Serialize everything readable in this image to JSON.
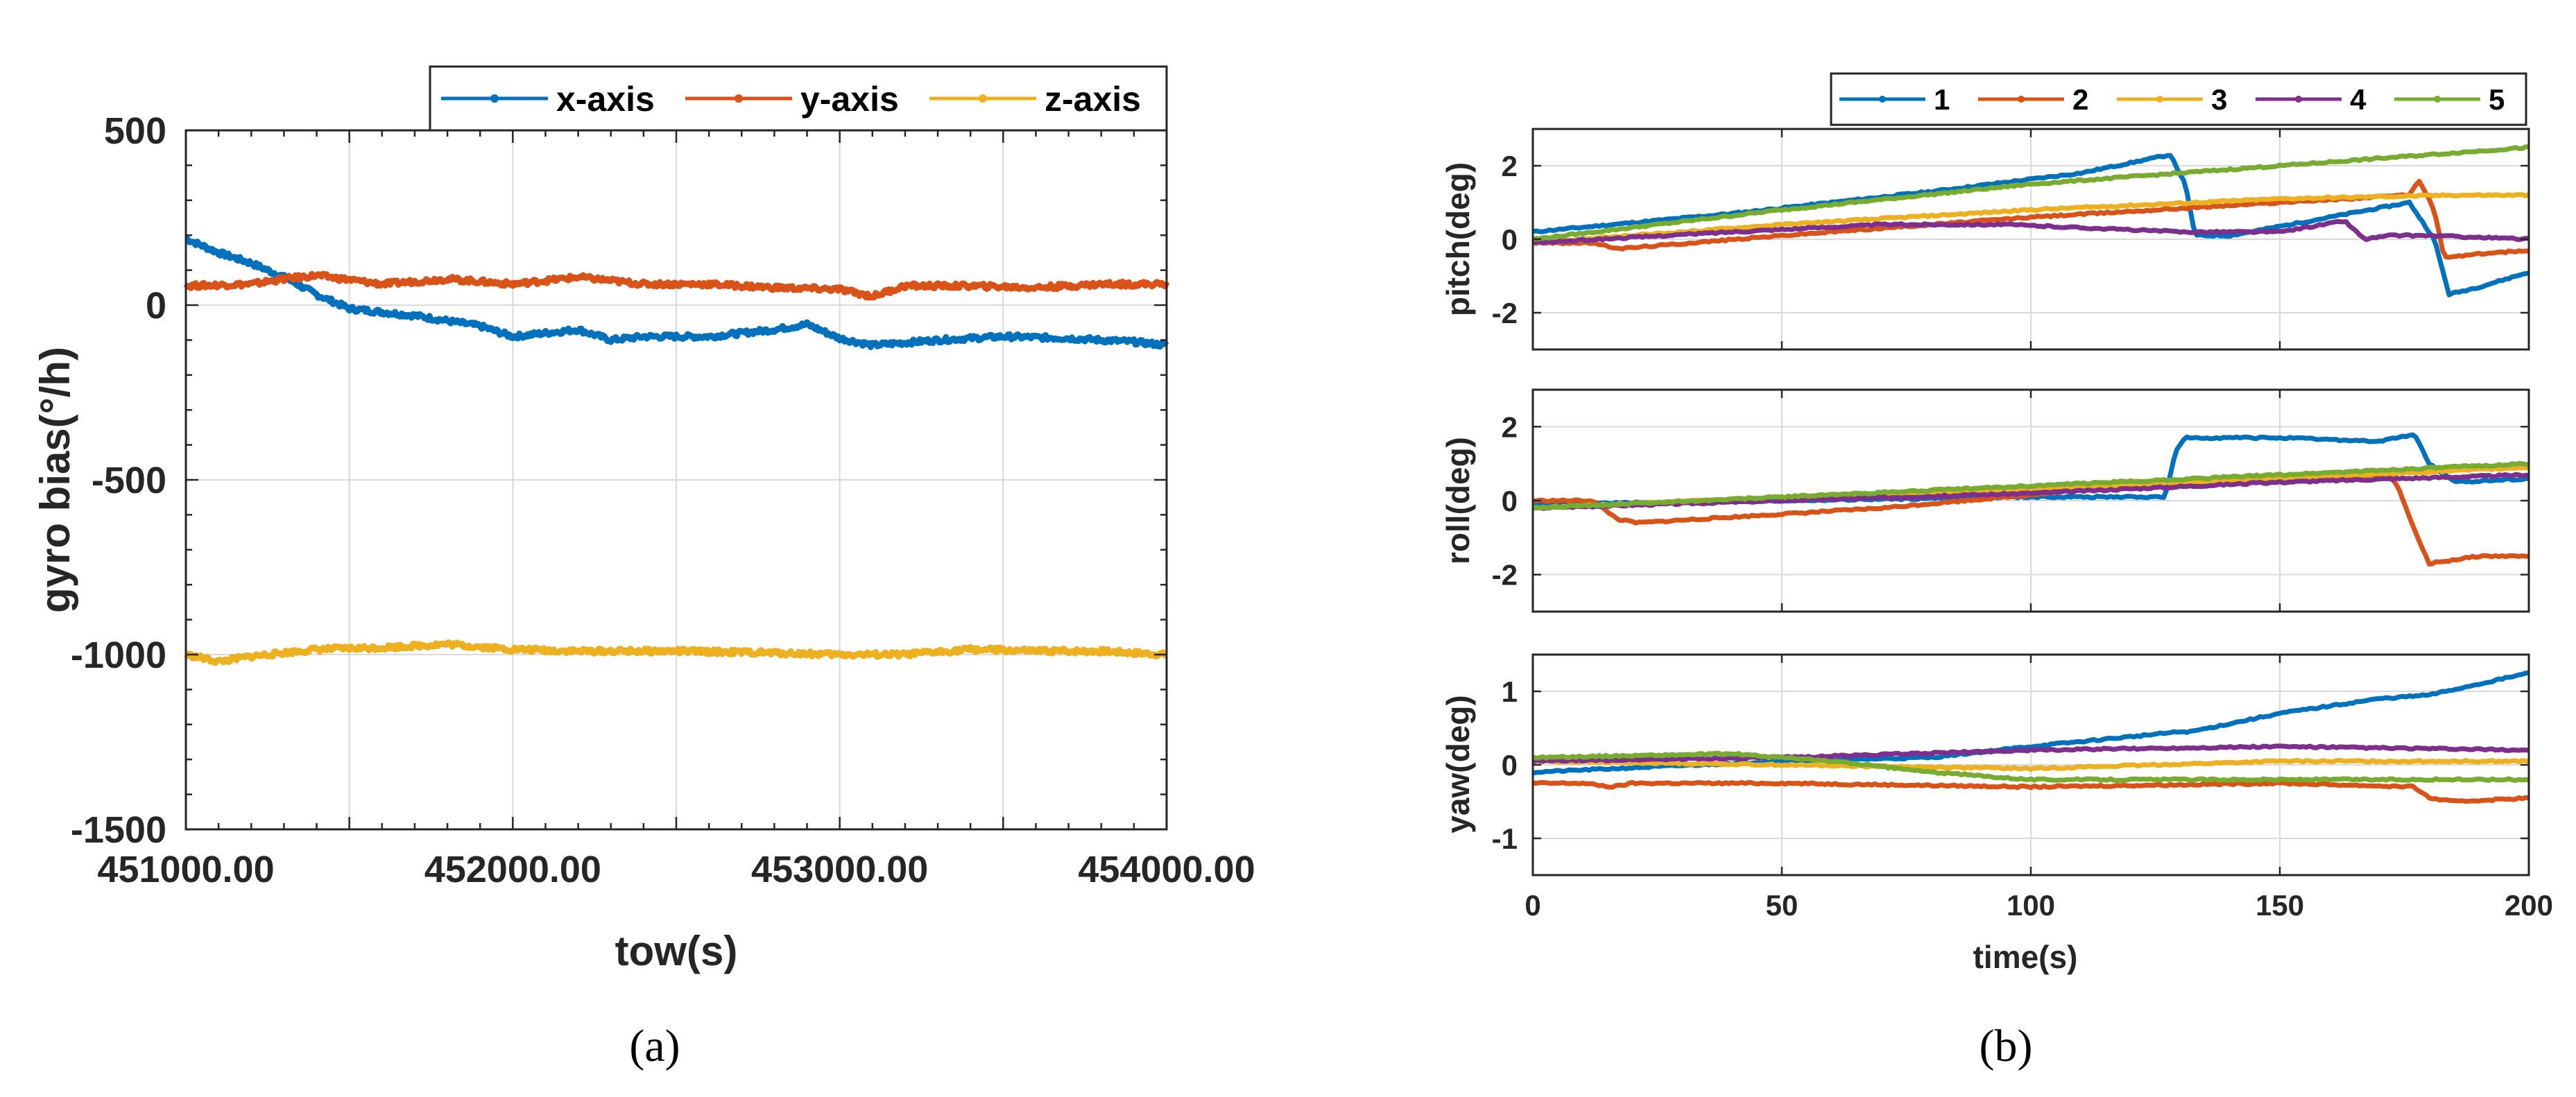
{
  "chart_data": [
    {
      "type": "line",
      "panel": "a",
      "caption": "(a)",
      "xlabel": "tow(s)",
      "ylabel": "gyro bias(°/h)",
      "xlim": [
        451000,
        454000
      ],
      "ylim": [
        -1500,
        500
      ],
      "xticks": [
        451000,
        452000,
        453000,
        454000
      ],
      "xtick_labels": [
        "451000.00",
        "452000.00",
        "453000.00",
        "454000.00"
      ],
      "yticks": [
        500,
        0,
        -500,
        -1000,
        -1500
      ],
      "ytick_labels": [
        "500",
        "0",
        "-500",
        "-1000",
        "-1500"
      ],
      "grid": true,
      "legend_position": "top-right",
      "series": [
        {
          "name": "x-axis",
          "color": "#0072BD",
          "x": [
            451000,
            451100,
            451200,
            451300,
            451400,
            451500,
            451700,
            451900,
            452000,
            452200,
            452300,
            452400,
            452600,
            452800,
            452900,
            453000,
            453100,
            453300,
            453500,
            453700,
            453900,
            454000
          ],
          "y": [
            190,
            150,
            120,
            80,
            30,
            -10,
            -30,
            -60,
            -90,
            -70,
            -100,
            -90,
            -90,
            -70,
            -55,
            -95,
            -115,
            -100,
            -90,
            -95,
            -105,
            -115
          ]
        },
        {
          "name": "y-axis",
          "color": "#D95319",
          "x": [
            451000,
            451200,
            451300,
            451400,
            451600,
            451800,
            452000,
            452200,
            452400,
            452600,
            452800,
            453000,
            453100,
            453200,
            453400,
            453600,
            453800,
            454000
          ],
          "y": [
            55,
            60,
            75,
            85,
            60,
            75,
            60,
            80,
            60,
            60,
            50,
            45,
            25,
            55,
            55,
            50,
            60,
            60
          ]
        },
        {
          "name": "z-axis",
          "color": "#EDB120",
          "x": [
            451000,
            451100,
            451200,
            451400,
            451600,
            451800,
            452000,
            452200,
            452500,
            452800,
            453000,
            453200,
            453400,
            453600,
            453800,
            454000
          ],
          "y": [
            -1000,
            -1020,
            -1005,
            -985,
            -980,
            -970,
            -985,
            -990,
            -990,
            -995,
            -1000,
            -1000,
            -985,
            -990,
            -990,
            -1000
          ]
        }
      ]
    },
    {
      "type": "line",
      "panel": "b",
      "caption": "(b)",
      "xlabel": "time(s)",
      "xlim": [
        0,
        200
      ],
      "xticks": [
        0,
        50,
        100,
        150,
        200
      ],
      "grid": true,
      "legend_position": "top",
      "legend": [
        "1",
        "2",
        "3",
        "4",
        "5"
      ],
      "colors": [
        "#0072BD",
        "#D95319",
        "#EDB120",
        "#7E2F8E",
        "#77AC30"
      ],
      "subplots": [
        {
          "ylabel": "pitch(deg)",
          "ylim": [
            -3,
            3
          ],
          "yticks": [
            2,
            0,
            -2
          ],
          "series": [
            {
              "name": "1",
              "x": [
                0,
                40,
                80,
                110,
                128,
                131,
                133,
                140,
                160,
                176,
                181,
                184,
                190,
                200
              ],
              "y": [
                0.2,
                0.7,
                1.3,
                1.8,
                2.3,
                1.5,
                0.1,
                0.1,
                0.6,
                1.0,
                0.0,
                -1.5,
                -1.3,
                -0.9
              ]
            },
            {
              "name": "2",
              "x": [
                0,
                12,
                15,
                18,
                50,
                100,
                150,
                176,
                178,
                181,
                183,
                190,
                200
              ],
              "y": [
                -0.1,
                -0.1,
                -0.2,
                -0.25,
                0.1,
                0.6,
                1.0,
                1.2,
                1.6,
                0.8,
                -0.5,
                -0.4,
                -0.3
              ]
            },
            {
              "name": "3",
              "x": [
                0,
                50,
                100,
                150,
                185,
                200
              ],
              "y": [
                -0.1,
                0.4,
                0.8,
                1.1,
                1.2,
                1.2
              ]
            },
            {
              "name": "4",
              "x": [
                0,
                40,
                70,
                95,
                130,
                150,
                163,
                167,
                172,
                180,
                200
              ],
              "y": [
                -0.1,
                0.2,
                0.4,
                0.4,
                0.2,
                0.2,
                0.5,
                0.0,
                0.1,
                0.1,
                0.0
              ]
            },
            {
              "name": "5",
              "x": [
                0,
                50,
                100,
                150,
                200
              ],
              "y": [
                0.0,
                0.8,
                1.5,
                2.0,
                2.5
              ]
            }
          ]
        },
        {
          "ylabel": "roll(deg)",
          "ylim": [
            -3,
            3
          ],
          "yticks": [
            2,
            0,
            -2
          ],
          "series": [
            {
              "name": "1",
              "x": [
                0,
                50,
                100,
                127,
                129,
                131,
                150,
                170,
                177,
                180,
                185,
                200
              ],
              "y": [
                -0.1,
                0.0,
                0.1,
                0.1,
                1.3,
                1.7,
                1.7,
                1.6,
                1.8,
                1.0,
                0.5,
                0.6
              ]
            },
            {
              "name": "2",
              "x": [
                0,
                12,
                17,
                21,
                70,
                120,
                172,
                174,
                177,
                180,
                190,
                200
              ],
              "y": [
                0.0,
                0.0,
                -0.5,
                -0.6,
                -0.2,
                0.4,
                0.7,
                0.3,
                -0.8,
                -1.7,
                -1.5,
                -1.5
              ]
            },
            {
              "name": "3",
              "x": [
                0,
                50,
                100,
                150,
                200
              ],
              "y": [
                -0.2,
                0.1,
                0.3,
                0.6,
                0.9
              ]
            },
            {
              "name": "4",
              "x": [
                0,
                50,
                100,
                150,
                200
              ],
              "y": [
                -0.2,
                0.0,
                0.2,
                0.5,
                0.7
              ]
            },
            {
              "name": "5",
              "x": [
                0,
                50,
                100,
                150,
                200
              ],
              "y": [
                -0.2,
                0.1,
                0.4,
                0.7,
                1.0
              ]
            }
          ]
        },
        {
          "ylabel": "yaw(deg)",
          "ylim": [
            -1.5,
            1.5
          ],
          "yticks": [
            1,
            0,
            -1
          ],
          "series": [
            {
              "name": "1",
              "x": [
                0,
                50,
                80,
                100,
                130,
                132,
                150,
                170,
                180,
                200
              ],
              "y": [
                -0.1,
                0.05,
                0.1,
                0.25,
                0.45,
                0.45,
                0.7,
                0.9,
                0.95,
                1.25
              ]
            },
            {
              "name": "2",
              "x": [
                0,
                10,
                16,
                20,
                50,
                100,
                150,
                177,
                180,
                185,
                200
              ],
              "y": [
                -0.25,
                -0.25,
                -0.3,
                -0.25,
                -0.25,
                -0.3,
                -0.25,
                -0.3,
                -0.45,
                -0.5,
                -0.45
              ]
            },
            {
              "name": "3",
              "x": [
                0,
                50,
                100,
                150,
                200
              ],
              "y": [
                0.05,
                0.0,
                -0.05,
                0.05,
                0.05
              ]
            },
            {
              "name": "4",
              "x": [
                0,
                50,
                100,
                150,
                200
              ],
              "y": [
                0.05,
                0.1,
                0.2,
                0.25,
                0.2
              ]
            },
            {
              "name": "5",
              "x": [
                0,
                40,
                60,
                80,
                100,
                140,
                200
              ],
              "y": [
                0.1,
                0.15,
                0.05,
                -0.1,
                -0.2,
                -0.2,
                -0.2
              ]
            }
          ]
        }
      ]
    }
  ]
}
